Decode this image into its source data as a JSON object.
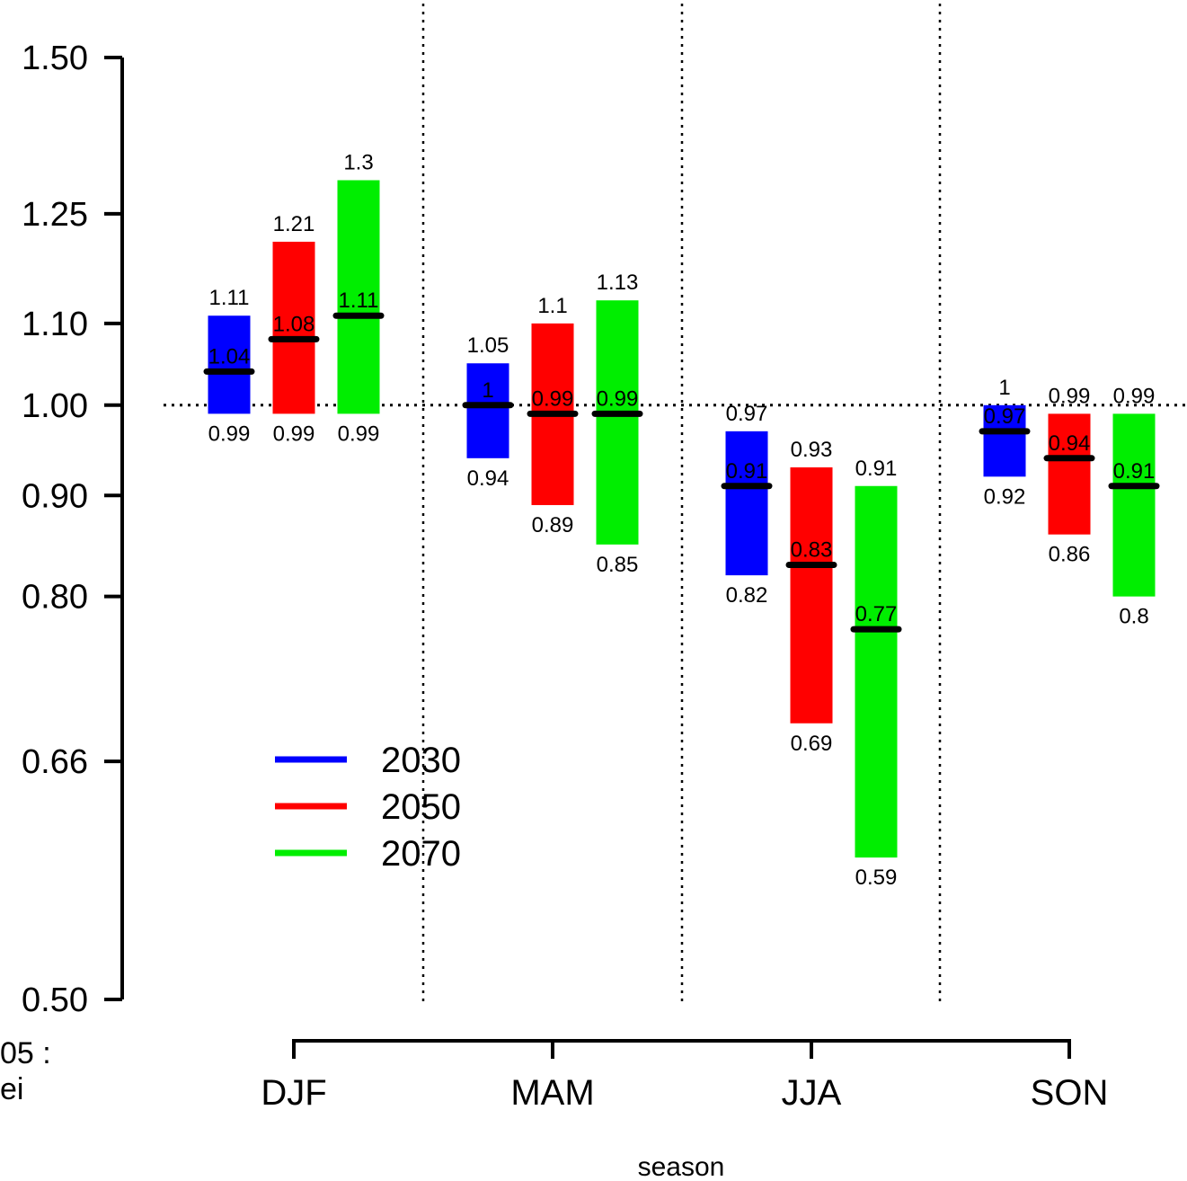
{
  "chart_data": {
    "type": "bar",
    "subtype": "range-bar (low / mid / high per category and series)",
    "categories": [
      "DJF",
      "MAM",
      "JJA",
      "SON"
    ],
    "series": [
      {
        "name": "2030",
        "color": "#0000ff",
        "low": [
          0.99,
          0.94,
          0.82,
          0.92
        ],
        "mid": [
          1.04,
          1.0,
          0.91,
          0.97
        ],
        "high": [
          1.11,
          1.05,
          0.97,
          1.0
        ],
        "low_labels": [
          "0.99",
          "0.94",
          "0.82",
          "0.92"
        ],
        "mid_labels": [
          "1.04",
          "1",
          "0.91",
          "0.97"
        ],
        "high_labels": [
          "1.11",
          "1.05",
          "0.97",
          "1"
        ]
      },
      {
        "name": "2050",
        "color": "#ff0000",
        "low": [
          0.99,
          0.89,
          0.69,
          0.86
        ],
        "mid": [
          1.08,
          0.99,
          0.83,
          0.94
        ],
        "high": [
          1.21,
          1.1,
          0.93,
          0.99
        ],
        "low_labels": [
          "0.99",
          "0.89",
          "0.69",
          "0.86"
        ],
        "mid_labels": [
          "1.08",
          "0.99",
          "0.83",
          "0.94"
        ],
        "high_labels": [
          "1.21",
          "1.1",
          "0.93",
          "0.99"
        ]
      },
      {
        "name": "2070",
        "color": "#00ee00",
        "low": [
          0.99,
          0.85,
          0.59,
          0.8
        ],
        "mid": [
          1.11,
          0.99,
          0.77,
          0.91
        ],
        "high": [
          1.3,
          1.13,
          0.91,
          0.99
        ],
        "low_labels": [
          "0.99",
          "0.85",
          "0.59",
          "0.8"
        ],
        "mid_labels": [
          "1.11",
          "0.99",
          "0.77",
          "0.91"
        ],
        "high_labels": [
          "1.3",
          "1.13",
          "0.91",
          "0.99"
        ]
      }
    ],
    "y_axis": {
      "scale": "log",
      "range": [
        0.5,
        1.5
      ],
      "ticks": [
        0.5,
        0.66,
        0.8,
        0.9,
        1.0,
        1.1,
        1.25,
        1.5
      ],
      "tick_labels": [
        "0.50",
        "0.66",
        "0.80",
        "0.90",
        "1.00",
        "1.10",
        "1.25",
        "1.50"
      ]
    },
    "reference_line": 1.0,
    "xlabel": "season",
    "ylabel": "",
    "legend": {
      "position": "lower-left",
      "entries": [
        "2030",
        "2050",
        "2070"
      ]
    },
    "grid": false,
    "category_separators": "dotted vertical lines between seasons"
  },
  "corner_text": {
    "line1": "05 :",
    "line2": "ei"
  }
}
